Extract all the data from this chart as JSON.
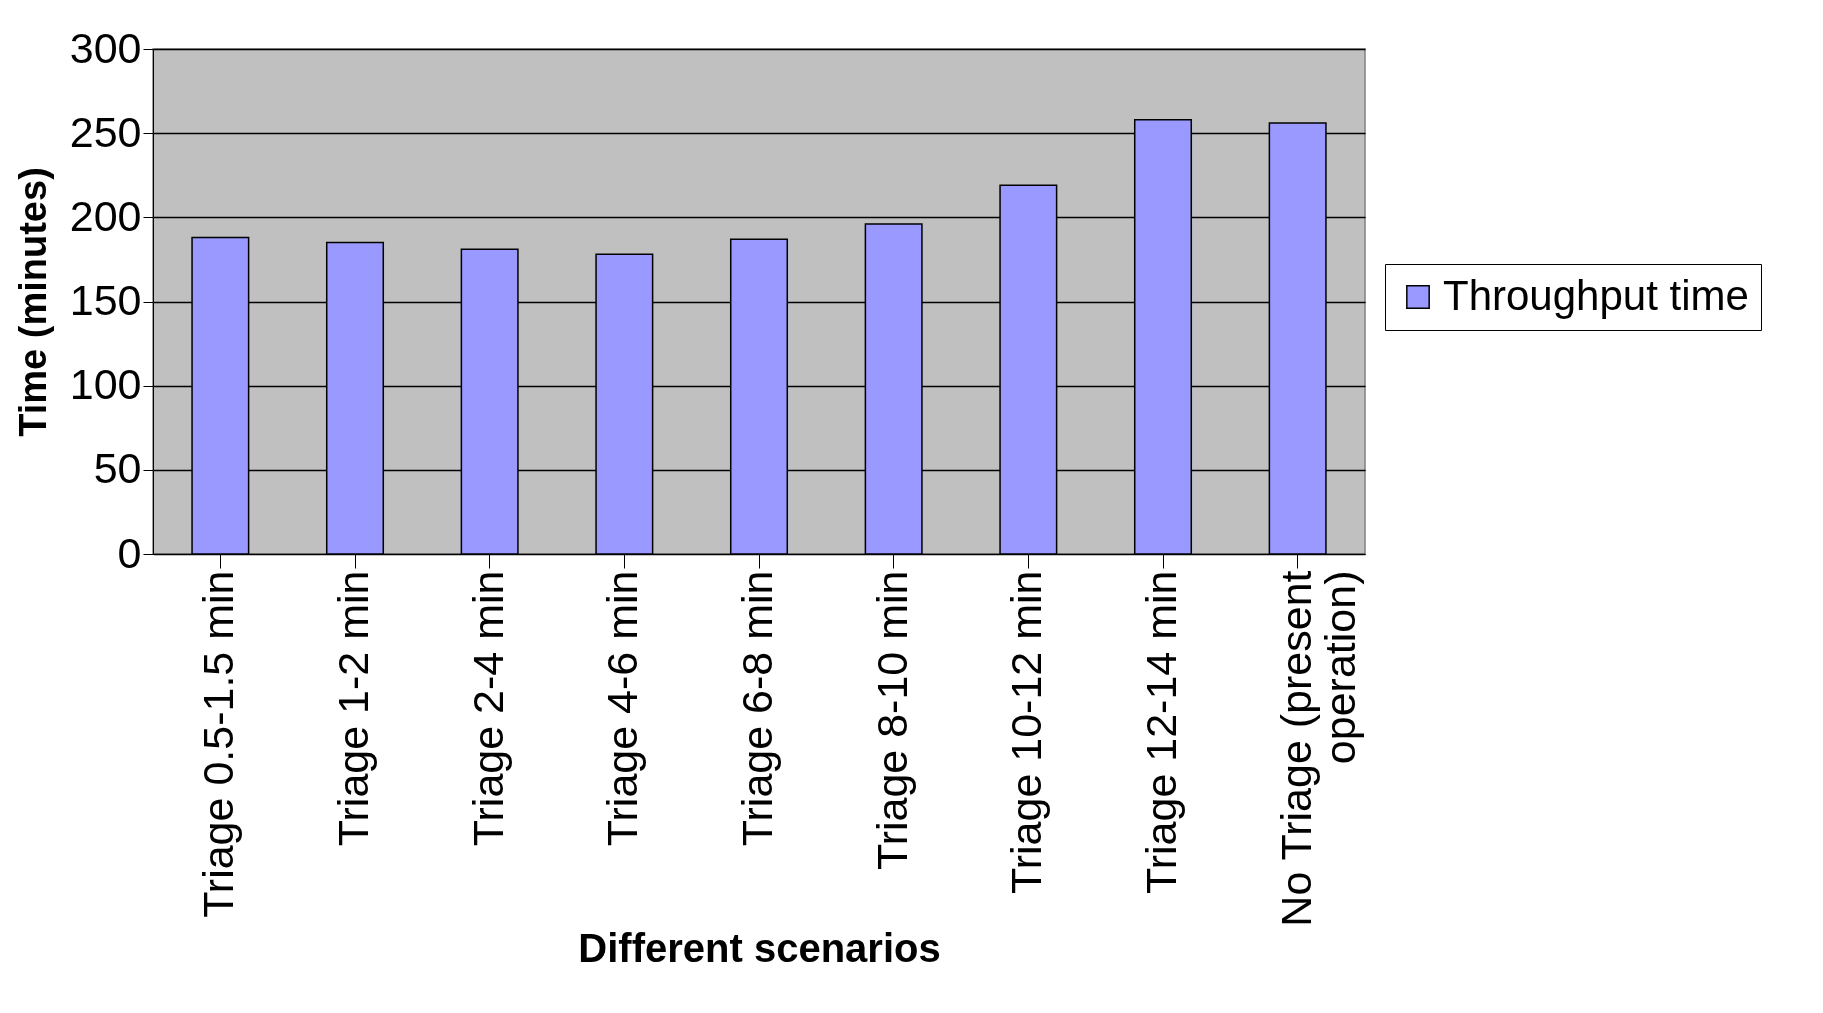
{
  "chart_data": {
    "type": "bar",
    "xlabel": "Different scenarios",
    "ylabel": "Time (minutes)",
    "categories": [
      "Triage 0.5-1.5 min",
      "Triage 1-2 min",
      "Triage 2-4 min",
      "Triage 4-6 min",
      "Triage 6-8 min",
      "Triage 8-10 min",
      "Triage 10-12 min",
      "Triage 12-14 min",
      "No Triage (present operation)"
    ],
    "series": [
      {
        "name": "Throughput time",
        "color": "#9999ff",
        "values": [
          188,
          185,
          181,
          178,
          187,
          196,
          219,
          258,
          256
        ]
      }
    ],
    "ylim": [
      0,
      300
    ],
    "yticks": [
      0,
      50,
      100,
      150,
      200,
      250,
      300
    ],
    "grid": "y",
    "legend": "right"
  }
}
